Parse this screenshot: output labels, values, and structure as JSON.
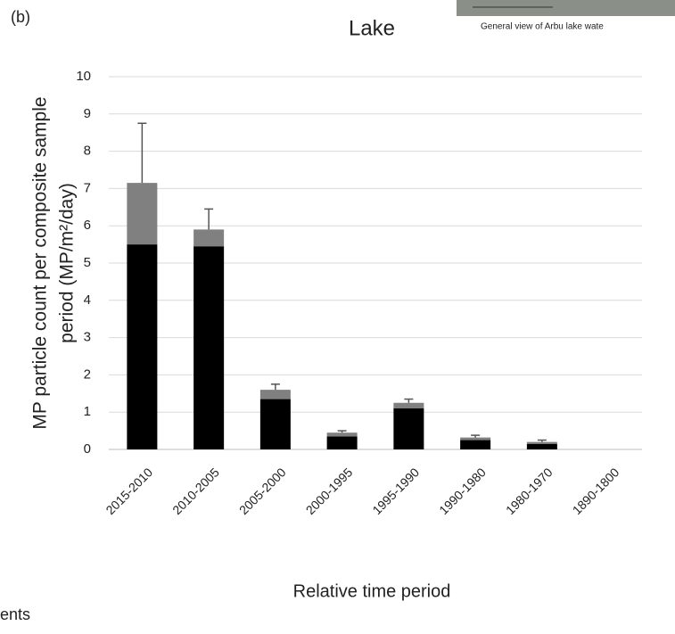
{
  "panel_label": "(b)",
  "inset_caption": "General view of Arbu lake wate",
  "footer_fragment": "ents",
  "chart_data": {
    "type": "bar",
    "stacked": true,
    "title": "Lake",
    "y_label": [
      "MP particle count per composite sample",
      "period (MP/m²/day)"
    ],
    "x_label": "Relative time period",
    "categories": [
      "2015-2010",
      "2010-2005",
      "2005-2000",
      "2000-1995",
      "1995-1990",
      "1990-1980",
      "1980-1970",
      "1890-1800"
    ],
    "series": [
      {
        "color": "#000000",
        "values": [
          5.5,
          5.45,
          1.35,
          0.35,
          1.1,
          0.25,
          0.15,
          0
        ]
      },
      {
        "color": "#808080",
        "values": [
          1.65,
          0.45,
          0.25,
          0.1,
          0.15,
          0.07,
          0.05,
          0
        ],
        "errors": [
          1.6,
          0.55,
          0.15,
          0.05,
          0.1,
          0.06,
          0.05,
          0
        ]
      }
    ],
    "ylim": [
      0,
      10
    ],
    "yticks": [
      0,
      1,
      2,
      3,
      4,
      5,
      6,
      7,
      8,
      9,
      10
    ],
    "grid": true
  }
}
